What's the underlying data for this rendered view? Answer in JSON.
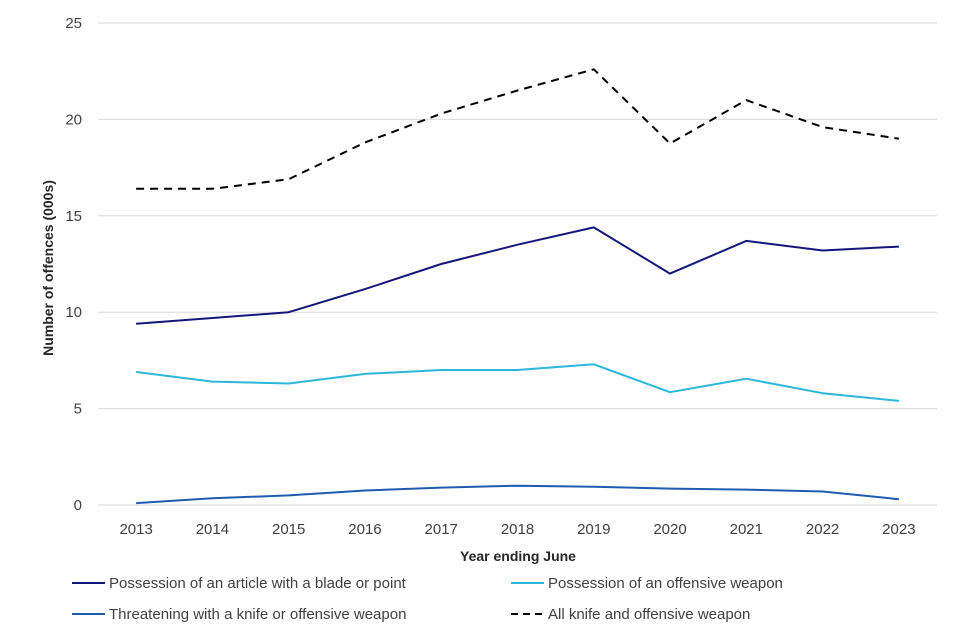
{
  "chart_data": {
    "type": "line",
    "title": "",
    "xlabel": "Year ending June",
    "ylabel": "Number of offences (000s)",
    "ylim": [
      0,
      25
    ],
    "yticks": [
      "0",
      "5",
      "10",
      "15",
      "20",
      "25"
    ],
    "grid": true,
    "legend_position": "bottom",
    "categories": [
      "2013",
      "2014",
      "2015",
      "2016",
      "2017",
      "2018",
      "2019",
      "2020",
      "2021",
      "2022",
      "2023"
    ],
    "series": [
      {
        "name": "Possession of an article with a blade or point",
        "color": "#13177a",
        "dash": "solid",
        "values": [
          9.4,
          9.7,
          10.0,
          11.2,
          12.5,
          13.5,
          14.4,
          12.0,
          13.7,
          13.2,
          13.4
        ]
      },
      {
        "name": "Possession of an offensive weapon",
        "color": "#2bb7d9",
        "dash": "solid",
        "values": [
          6.9,
          6.4,
          6.3,
          6.8,
          7.0,
          7.0,
          7.3,
          5.85,
          6.55,
          5.8,
          5.4
        ]
      },
      {
        "name": "Threatening with a knife or offensive weapon",
        "color": "#1f5bb0",
        "dash": "solid",
        "values": [
          0.1,
          0.35,
          0.5,
          0.75,
          0.9,
          1.0,
          0.95,
          0.85,
          0.8,
          0.7,
          0.3
        ]
      },
      {
        "name": "All knife and offensive weapon",
        "color": "#000000",
        "dash": "dashed",
        "values": [
          16.4,
          16.4,
          16.9,
          18.8,
          20.3,
          21.5,
          22.6,
          18.75,
          21.0,
          19.6,
          19.0
        ]
      }
    ]
  }
}
